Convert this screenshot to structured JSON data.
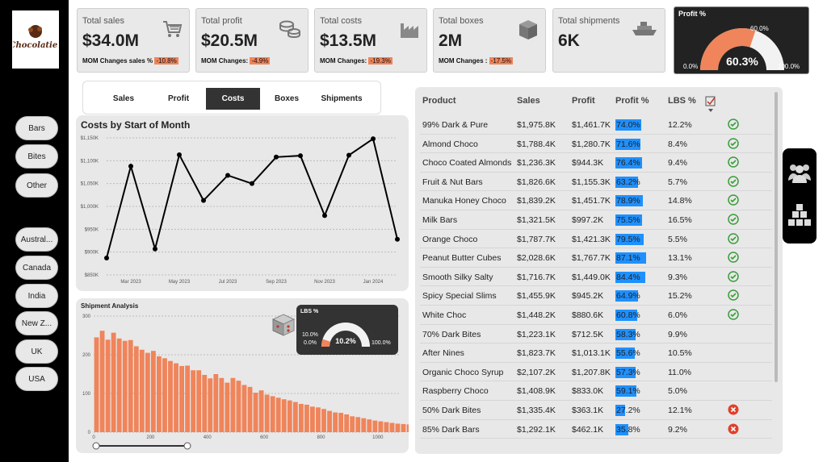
{
  "brand": {
    "logo_text": "Chocolatier"
  },
  "filters": {
    "categories": [
      "Bars",
      "Bites",
      "Other"
    ],
    "countries": [
      "Austral...",
      "Canada",
      "India",
      "New Z...",
      "UK",
      "USA"
    ]
  },
  "kpis": [
    {
      "title": "Total sales",
      "value": "$34.0M",
      "sub_label": "MOM Changes sales % ",
      "sub_value": "-10.8%",
      "icon": "cart-icon"
    },
    {
      "title": "Total profit",
      "value": "$20.5M",
      "sub_label": "MOM Changes: ",
      "sub_value": "-4.9%",
      "icon": "coins-icon"
    },
    {
      "title": "Total costs",
      "value": "$13.5M",
      "sub_label": "MOM Changes: ",
      "sub_value": "-19.3%",
      "icon": "factory-icon"
    },
    {
      "title": "Total boxes",
      "value": "2M",
      "sub_label": "MOM Changes : ",
      "sub_value": "-17.5%",
      "icon": "box-icon"
    },
    {
      "title": "Total shipments",
      "value": "6K",
      "sub_label": "",
      "sub_value": "",
      "icon": "ship-icon"
    }
  ],
  "profit_gauge": {
    "title": "Profit %",
    "value": "60.3%",
    "min": "0.0%",
    "max": "100.0%",
    "target": "60.0%",
    "fraction": 0.603,
    "color": "#f0845a"
  },
  "tabs": [
    "Sales",
    "Profit",
    "Costs",
    "Boxes",
    "Shipments"
  ],
  "active_tab": "Costs",
  "costs_chart": {
    "title": "Costs by Start of Month",
    "chart_data": {
      "type": "line",
      "x": [
        "Feb 2023",
        "Mar 2023",
        "Apr 2023",
        "May 2023",
        "Jun 2023",
        "Jul 2023",
        "Aug 2023",
        "Sep 2023",
        "Oct 2023",
        "Nov 2023",
        "Dec 2023",
        "Jan 2024",
        "Feb 2024"
      ],
      "values": [
        887,
        1088,
        907,
        1113,
        1013,
        1068,
        1050,
        1108,
        1111,
        980,
        1112,
        1148,
        928
      ],
      "ytick_labels": [
        "$850K",
        "$900K",
        "$950K",
        "$1,000K",
        "$1,050K",
        "$1,100K",
        "$1,150K"
      ],
      "yticks": [
        850,
        900,
        950,
        1000,
        1050,
        1100,
        1150
      ],
      "ylim": [
        850,
        1150
      ],
      "xtick_labels": [
        "Mar 2023",
        "May 2023",
        "Jul 2023",
        "Sep 2023",
        "Nov 2023",
        "Jan 2024"
      ],
      "xtick_index": [
        1,
        3,
        5,
        7,
        9,
        11
      ],
      "grid": true
    }
  },
  "shipment_chart": {
    "title": "Shipment Analysis",
    "chart_data": {
      "type": "bar",
      "ylim": [
        0,
        300
      ],
      "yticks": [
        0,
        100,
        200,
        300
      ],
      "xticks": [
        0,
        200,
        400,
        600,
        800,
        1000
      ],
      "xlim": [
        0,
        1080
      ],
      "bin_width": 20,
      "values": [
        245,
        262,
        239,
        257,
        242,
        236,
        238,
        222,
        213,
        205,
        210,
        196,
        191,
        184,
        178,
        171,
        172,
        160,
        160,
        148,
        139,
        150,
        140,
        128,
        140,
        133,
        122,
        117,
        102,
        108,
        97,
        93,
        89,
        85,
        82,
        78,
        73,
        71,
        66,
        64,
        60,
        55,
        51,
        50,
        46,
        41,
        39,
        36,
        33,
        30,
        28,
        26,
        24,
        22,
        21,
        20,
        19
      ],
      "color": "#f0845a",
      "grid": true
    }
  },
  "lbs_gauge": {
    "title": "LBS %",
    "value": "10.2%",
    "min": "0.0%",
    "max": "100.0%",
    "target": "10.0%",
    "fraction": 0.102
  },
  "table": {
    "headers": [
      "Product",
      "Sales",
      "Profit",
      "Profit %",
      "LBS %"
    ],
    "rows": [
      {
        "product": "99% Dark & Pure",
        "sales": "$1,975.8K",
        "profit": "$1,461.7K",
        "pct": "74.0%",
        "pct_value": 74.0,
        "lbs": "12.2%",
        "status": "ok"
      },
      {
        "product": "Almond Choco",
        "sales": "$1,788.4K",
        "profit": "$1,280.7K",
        "pct": "71.6%",
        "pct_value": 71.6,
        "lbs": "8.4%",
        "status": "ok"
      },
      {
        "product": "Choco Coated Almonds",
        "sales": "$1,236.3K",
        "profit": "$944.3K",
        "pct": "76.4%",
        "pct_value": 76.4,
        "lbs": "9.4%",
        "status": "ok"
      },
      {
        "product": "Fruit & Nut Bars",
        "sales": "$1,826.6K",
        "profit": "$1,155.3K",
        "pct": "63.2%",
        "pct_value": 63.2,
        "lbs": "5.7%",
        "status": "ok"
      },
      {
        "product": "Manuka Honey Choco",
        "sales": "$1,839.2K",
        "profit": "$1,451.7K",
        "pct": "78.9%",
        "pct_value": 78.9,
        "lbs": "14.8%",
        "status": "ok"
      },
      {
        "product": "Milk Bars",
        "sales": "$1,321.5K",
        "profit": "$997.2K",
        "pct": "75.5%",
        "pct_value": 75.5,
        "lbs": "16.5%",
        "status": "ok"
      },
      {
        "product": "Orange Choco",
        "sales": "$1,787.7K",
        "profit": "$1,421.3K",
        "pct": "79.5%",
        "pct_value": 79.5,
        "lbs": "5.5%",
        "status": "ok"
      },
      {
        "product": "Peanut Butter Cubes",
        "sales": "$2,028.6K",
        "profit": "$1,767.7K",
        "pct": "87.1%",
        "pct_value": 87.1,
        "lbs": "13.1%",
        "status": "ok"
      },
      {
        "product": "Smooth Silky Salty",
        "sales": "$1,716.7K",
        "profit": "$1,449.0K",
        "pct": "84.4%",
        "pct_value": 84.4,
        "lbs": "9.3%",
        "status": "ok"
      },
      {
        "product": "Spicy Special Slims",
        "sales": "$1,455.9K",
        "profit": "$945.2K",
        "pct": "64.9%",
        "pct_value": 64.9,
        "lbs": "15.2%",
        "status": "ok"
      },
      {
        "product": "White Choc",
        "sales": "$1,448.2K",
        "profit": "$880.6K",
        "pct": "60.8%",
        "pct_value": 60.8,
        "lbs": "6.0%",
        "status": "ok"
      },
      {
        "product": "70% Dark Bites",
        "sales": "$1,223.1K",
        "profit": "$712.5K",
        "pct": "58.3%",
        "pct_value": 58.3,
        "lbs": "9.9%",
        "status": ""
      },
      {
        "product": "After Nines",
        "sales": "$1,823.7K",
        "profit": "$1,013.1K",
        "pct": "55.6%",
        "pct_value": 55.6,
        "lbs": "10.5%",
        "status": ""
      },
      {
        "product": "Organic Choco Syrup",
        "sales": "$2,107.2K",
        "profit": "$1,207.8K",
        "pct": "57.3%",
        "pct_value": 57.3,
        "lbs": "11.0%",
        "status": ""
      },
      {
        "product": "Raspberry Choco",
        "sales": "$1,408.9K",
        "profit": "$833.0K",
        "pct": "59.1%",
        "pct_value": 59.1,
        "lbs": "5.0%",
        "status": ""
      },
      {
        "product": "50% Dark Bites",
        "sales": "$1,335.4K",
        "profit": "$363.1K",
        "pct": "27.2%",
        "pct_value": 27.2,
        "lbs": "12.1%",
        "status": "bad"
      },
      {
        "product": "85% Dark Bars",
        "sales": "$1,292.1K",
        "profit": "$462.1K",
        "pct": "35.8%",
        "pct_value": 35.8,
        "lbs": "9.2%",
        "status": "bad"
      }
    ]
  },
  "colors": {
    "accent": "#f0845a",
    "bar_blue": "#1e90ff",
    "ok_green": "#3a9d3a",
    "bad_red": "#e0402a"
  }
}
